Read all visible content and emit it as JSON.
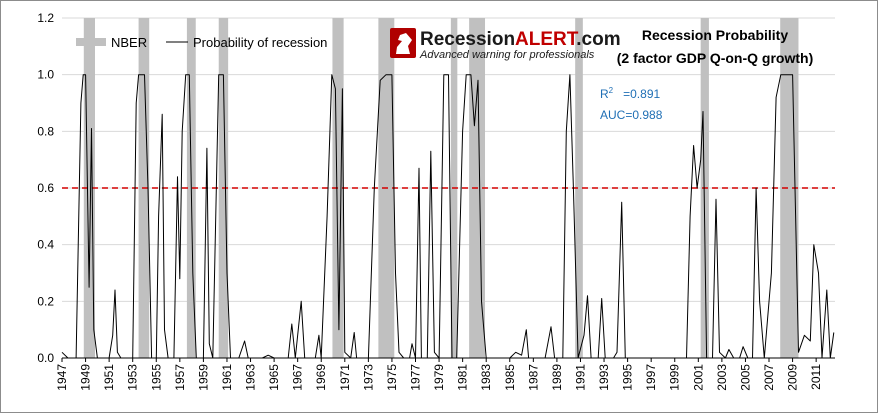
{
  "chart_data": {
    "type": "line",
    "title": "Recession Probability",
    "subtitle": "(2 factor GDP Q-on-Q growth)",
    "logo": {
      "brand_plain": "Recession",
      "brand_accent": "ALERT",
      "brand_suffix": ".com",
      "tagline": "Advanced warning for professionals"
    },
    "stats": {
      "r2_label": "R",
      "r2_sup": "2",
      "r2_value": "=0.891",
      "auc": "AUC=0.988"
    },
    "legend": {
      "nber": "NBER",
      "line": "Probability of recession",
      "position": "top-left"
    },
    "ylim": [
      0,
      1.2
    ],
    "yticks": [
      "0.0",
      "0.2",
      "0.4",
      "0.6",
      "0.8",
      "1.0",
      "1.2"
    ],
    "xlim": [
      1947.0,
      2012.6
    ],
    "xticks": [
      "1947",
      "1949",
      "1951",
      "1953",
      "1955",
      "1957",
      "1959",
      "1961",
      "1963",
      "1965",
      "1967",
      "1969",
      "1971",
      "1973",
      "1975",
      "1977",
      "1979",
      "1981",
      "1983",
      "1985",
      "1987",
      "1989",
      "1991",
      "1993",
      "1995",
      "1997",
      "1999",
      "2001",
      "2003",
      "2005",
      "2007",
      "2009",
      "2011"
    ],
    "threshold": 0.6,
    "grid": true,
    "colors": {
      "line": "#000000",
      "nber": "#c0c0c0",
      "threshold": "#d40000",
      "grid": "#d9d9d9",
      "brand_accent": "#c00000",
      "stats": "#1f6fb5"
    },
    "nber_recessions": [
      [
        1948.85,
        1949.8
      ],
      [
        1953.5,
        1954.4
      ],
      [
        1957.6,
        1958.35
      ],
      [
        1960.3,
        1961.1
      ],
      [
        1969.95,
        1970.9
      ],
      [
        1973.85,
        1975.2
      ],
      [
        1980.0,
        1980.55
      ],
      [
        1981.55,
        1982.9
      ],
      [
        1990.55,
        1991.2
      ],
      [
        2001.2,
        2001.9
      ],
      [
        2007.95,
        2009.5
      ]
    ],
    "series": [
      {
        "name": "Probability of recession",
        "points": [
          [
            1947.0,
            0.02
          ],
          [
            1947.5,
            0.0
          ],
          [
            1948.2,
            0.0
          ],
          [
            1948.6,
            0.9
          ],
          [
            1948.8,
            1.0
          ],
          [
            1949.0,
            1.0
          ],
          [
            1949.3,
            0.25
          ],
          [
            1949.5,
            0.81
          ],
          [
            1949.7,
            0.1
          ],
          [
            1950.0,
            0.0
          ],
          [
            1951.0,
            0.0
          ],
          [
            1951.3,
            0.08
          ],
          [
            1951.5,
            0.24
          ],
          [
            1951.7,
            0.02
          ],
          [
            1952.0,
            0.0
          ],
          [
            1953.0,
            0.0
          ],
          [
            1953.3,
            0.9
          ],
          [
            1953.5,
            1.0
          ],
          [
            1954.0,
            1.0
          ],
          [
            1954.3,
            0.6
          ],
          [
            1954.6,
            0.0
          ],
          [
            1955.0,
            0.0
          ],
          [
            1955.2,
            0.5
          ],
          [
            1955.5,
            0.86
          ],
          [
            1955.7,
            0.1
          ],
          [
            1956.0,
            0.0
          ],
          [
            1956.5,
            0.0
          ],
          [
            1956.8,
            0.64
          ],
          [
            1957.0,
            0.28
          ],
          [
            1957.2,
            0.8
          ],
          [
            1957.5,
            1.0
          ],
          [
            1957.8,
            1.0
          ],
          [
            1958.1,
            0.3
          ],
          [
            1958.4,
            0.0
          ],
          [
            1959.0,
            0.0
          ],
          [
            1959.3,
            0.74
          ],
          [
            1959.5,
            0.05
          ],
          [
            1959.8,
            0.0
          ],
          [
            1960.3,
            1.0
          ],
          [
            1960.7,
            1.0
          ],
          [
            1961.0,
            0.3
          ],
          [
            1961.3,
            0.0
          ],
          [
            1962.0,
            0.0
          ],
          [
            1962.5,
            0.06
          ],
          [
            1962.8,
            0.0
          ],
          [
            1964.0,
            0.0
          ],
          [
            1964.5,
            0.01
          ],
          [
            1965.0,
            0.0
          ],
          [
            1966.2,
            0.0
          ],
          [
            1966.5,
            0.12
          ],
          [
            1966.8,
            0.0
          ],
          [
            1967.3,
            0.2
          ],
          [
            1967.6,
            0.0
          ],
          [
            1968.5,
            0.0
          ],
          [
            1968.8,
            0.08
          ],
          [
            1969.0,
            0.0
          ],
          [
            1969.5,
            0.5
          ],
          [
            1969.9,
            1.0
          ],
          [
            1970.2,
            0.95
          ],
          [
            1970.5,
            0.1
          ],
          [
            1970.8,
            0.95
          ],
          [
            1971.0,
            0.02
          ],
          [
            1971.5,
            0.0
          ],
          [
            1971.8,
            0.09
          ],
          [
            1972.0,
            0.0
          ],
          [
            1973.0,
            0.0
          ],
          [
            1973.5,
            0.6
          ],
          [
            1974.0,
            0.98
          ],
          [
            1974.5,
            1.0
          ],
          [
            1975.0,
            1.0
          ],
          [
            1975.3,
            0.3
          ],
          [
            1975.6,
            0.02
          ],
          [
            1976.0,
            0.0
          ],
          [
            1976.5,
            0.0
          ],
          [
            1976.7,
            0.05
          ],
          [
            1977.0,
            0.0
          ],
          [
            1977.3,
            0.67
          ],
          [
            1977.5,
            0.0
          ],
          [
            1978.0,
            0.0
          ],
          [
            1978.3,
            0.73
          ],
          [
            1978.6,
            0.02
          ],
          [
            1979.0,
            0.0
          ],
          [
            1979.4,
            1.0
          ],
          [
            1979.8,
            1.0
          ],
          [
            1980.1,
            0.0
          ],
          [
            1980.5,
            0.0
          ],
          [
            1981.0,
            0.8
          ],
          [
            1981.3,
            1.0
          ],
          [
            1981.7,
            1.0
          ],
          [
            1982.0,
            0.82
          ],
          [
            1982.3,
            0.98
          ],
          [
            1982.6,
            0.2
          ],
          [
            1983.0,
            0.0
          ],
          [
            1985.0,
            0.0
          ],
          [
            1985.5,
            0.02
          ],
          [
            1986.0,
            0.01
          ],
          [
            1986.4,
            0.1
          ],
          [
            1986.6,
            0.0
          ],
          [
            1988.0,
            0.0
          ],
          [
            1988.5,
            0.11
          ],
          [
            1988.8,
            0.0
          ],
          [
            1989.5,
            0.0
          ],
          [
            1989.8,
            0.8
          ],
          [
            1990.1,
            1.0
          ],
          [
            1990.4,
            0.6
          ],
          [
            1990.8,
            0.0
          ],
          [
            1991.3,
            0.08
          ],
          [
            1991.6,
            0.22
          ],
          [
            1991.9,
            0.0
          ],
          [
            1992.5,
            0.0
          ],
          [
            1992.8,
            0.21
          ],
          [
            1993.1,
            0.0
          ],
          [
            1993.8,
            0.0
          ],
          [
            1994.1,
            0.02
          ],
          [
            1994.5,
            0.55
          ],
          [
            1994.8,
            0.0
          ],
          [
            1996.0,
            0.0
          ],
          [
            1998.0,
            0.0
          ],
          [
            2000.0,
            0.0
          ],
          [
            2000.3,
            0.5
          ],
          [
            2000.6,
            0.75
          ],
          [
            2000.9,
            0.6
          ],
          [
            2001.2,
            0.7
          ],
          [
            2001.4,
            0.87
          ],
          [
            2001.7,
            0.0
          ],
          [
            2002.2,
            0.0
          ],
          [
            2002.5,
            0.56
          ],
          [
            2002.8,
            0.02
          ],
          [
            2003.3,
            0.0
          ],
          [
            2003.6,
            0.03
          ],
          [
            2004.0,
            0.0
          ],
          [
            2004.5,
            0.0
          ],
          [
            2004.8,
            0.04
          ],
          [
            2005.2,
            0.0
          ],
          [
            2005.6,
            0.0
          ],
          [
            2005.9,
            0.6
          ],
          [
            2006.2,
            0.2
          ],
          [
            2006.6,
            0.0
          ],
          [
            2007.2,
            0.3
          ],
          [
            2007.6,
            0.92
          ],
          [
            2008.0,
            1.0
          ],
          [
            2008.5,
            1.0
          ],
          [
            2009.0,
            1.0
          ],
          [
            2009.5,
            0.02
          ],
          [
            2010.0,
            0.08
          ],
          [
            2010.5,
            0.06
          ],
          [
            2010.8,
            0.4
          ],
          [
            2011.2,
            0.3
          ],
          [
            2011.5,
            0.0
          ],
          [
            2011.9,
            0.24
          ],
          [
            2012.2,
            0.0
          ],
          [
            2012.5,
            0.09
          ]
        ]
      }
    ]
  }
}
